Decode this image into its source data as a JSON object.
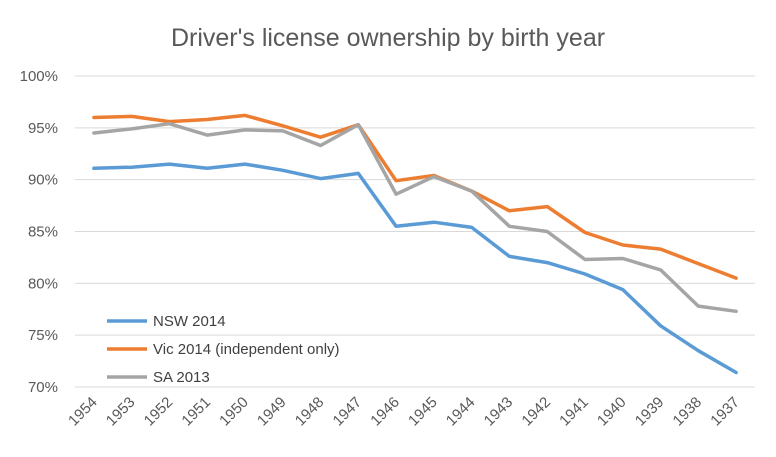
{
  "chart_data": {
    "type": "line",
    "title": "Driver's license ownership by birth year",
    "xlabel": "",
    "ylabel": "",
    "categories": [
      "1954",
      "1953",
      "1952",
      "1951",
      "1950",
      "1949",
      "1948",
      "1947",
      "1946",
      "1945",
      "1944",
      "1943",
      "1942",
      "1941",
      "1940",
      "1939",
      "1938",
      "1937"
    ],
    "ylim": [
      70,
      100
    ],
    "yticks": [
      100,
      95,
      90,
      85,
      80,
      75,
      70
    ],
    "ytick_labels": [
      "100%",
      "95%",
      "90%",
      "85%",
      "80%",
      "75%",
      "70%"
    ],
    "grid": true,
    "legend_position": "bottom-left",
    "series": [
      {
        "name": "NSW 2014",
        "color": "#5b9bd5",
        "values": [
          91.1,
          91.2,
          91.5,
          91.1,
          91.5,
          90.9,
          90.1,
          90.6,
          85.5,
          85.9,
          85.4,
          82.6,
          82.0,
          80.9,
          79.4,
          75.9,
          73.5,
          71.4
        ]
      },
      {
        "name": "Vic 2014 (independent only)",
        "color": "#ed7d31",
        "values": [
          96.0,
          96.1,
          95.6,
          95.8,
          96.2,
          95.2,
          94.1,
          95.3,
          89.9,
          90.4,
          88.9,
          87.0,
          87.4,
          84.9,
          83.7,
          83.3,
          81.9,
          80.5
        ]
      },
      {
        "name": "SA 2013",
        "color": "#a5a5a5",
        "values": [
          94.5,
          94.9,
          95.4,
          94.3,
          94.8,
          94.7,
          93.3,
          95.3,
          88.6,
          90.3,
          88.9,
          85.5,
          85.0,
          82.3,
          82.4,
          81.3,
          77.8,
          77.3
        ]
      }
    ]
  }
}
